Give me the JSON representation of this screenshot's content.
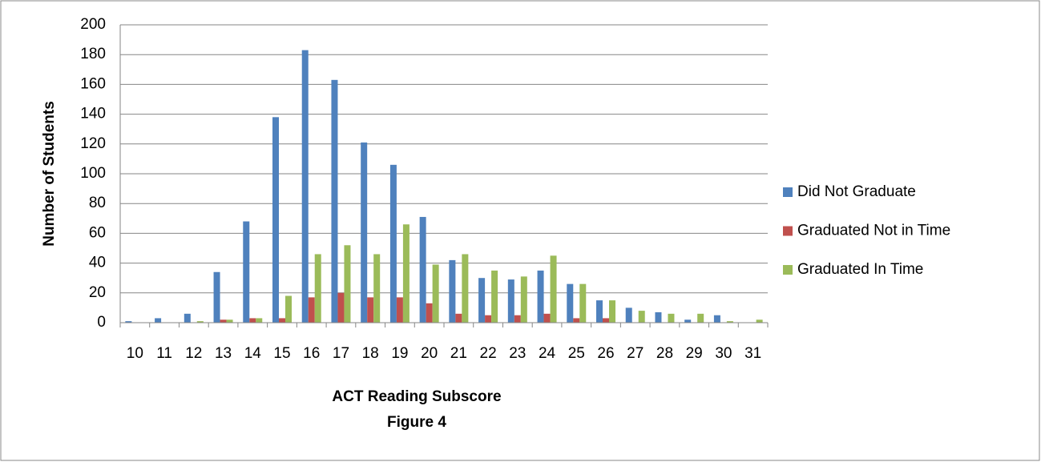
{
  "chart_data": {
    "type": "bar",
    "x_label": "ACT Reading Subscore",
    "caption": "Figure 4",
    "y_label": "Number of Students",
    "categories": [
      "10",
      "11",
      "12",
      "13",
      "14",
      "15",
      "16",
      "17",
      "18",
      "19",
      "20",
      "21",
      "22",
      "23",
      "24",
      "25",
      "26",
      "27",
      "28",
      "29",
      "30",
      "31"
    ],
    "series": [
      {
        "name": "Did Not Graduate",
        "color": "#4f81bd",
        "values": [
          1,
          3,
          6,
          34,
          68,
          138,
          183,
          163,
          121,
          106,
          71,
          42,
          30,
          29,
          35,
          26,
          15,
          10,
          7,
          2,
          5,
          0
        ]
      },
      {
        "name": "Graduated Not in Time",
        "color": "#c0504d",
        "values": [
          0,
          0,
          0,
          2,
          3,
          3,
          17,
          20,
          17,
          17,
          13,
          6,
          5,
          5,
          6,
          3,
          3,
          0,
          0,
          0,
          0,
          0
        ]
      },
      {
        "name": "Graduated In Time",
        "color": "#9bbb59",
        "values": [
          0,
          0,
          1,
          2,
          3,
          18,
          46,
          52,
          46,
          66,
          39,
          46,
          35,
          31,
          45,
          26,
          15,
          8,
          6,
          6,
          1,
          2
        ]
      }
    ],
    "ylim": [
      0,
      200
    ],
    "yticks": [
      0,
      20,
      40,
      60,
      80,
      100,
      120,
      140,
      160,
      180,
      200
    ],
    "grid": true,
    "legend": "right"
  }
}
